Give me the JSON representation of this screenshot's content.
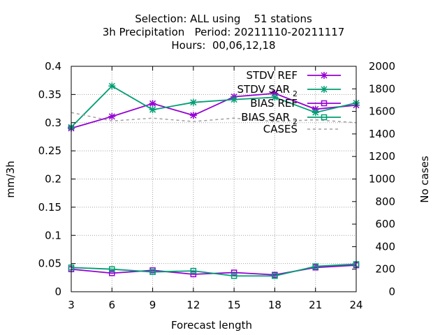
{
  "chart_data": {
    "type": "line",
    "title_lines": [
      "Selection: ALL using    51 stations",
      "3h Precipitation   Period: 20211110-20211117",
      "Hours:  00,06,12,18"
    ],
    "xlabel": "Forecast length",
    "ylabel": "mm/3h",
    "y2label": "No cases",
    "x": [
      3,
      6,
      9,
      12,
      15,
      18,
      21,
      24
    ],
    "xlim": [
      3,
      24
    ],
    "ylim": [
      0,
      0.4
    ],
    "y2lim": [
      0,
      2000
    ],
    "x_ticks": [
      3,
      6,
      9,
      12,
      15,
      18,
      21,
      24
    ],
    "y_ticks": [
      "0",
      "0.05",
      "0.1",
      "0.15",
      "0.2",
      "0.25",
      "0.3",
      "0.35",
      "0.4"
    ],
    "y2_ticks": [
      "0",
      "200",
      "400",
      "600",
      "800",
      "1000",
      "1200",
      "1400",
      "1600",
      "1800",
      "2000"
    ],
    "grid": true,
    "legend_position": "top-right",
    "series": [
      {
        "name": "STDV REF",
        "axis": "y",
        "color": "#9400d3",
        "marker": "x",
        "dashed": false,
        "values": [
          0.29,
          0.311,
          0.334,
          0.313,
          0.346,
          0.352,
          0.324,
          0.331
        ]
      },
      {
        "name": "STDV SAR",
        "name_sub": "2",
        "axis": "y",
        "color": "#009e73",
        "marker": "x",
        "dashed": false,
        "values": [
          0.292,
          0.365,
          0.323,
          0.336,
          0.341,
          0.345,
          0.318,
          0.335
        ]
      },
      {
        "name": "BIAS REF",
        "axis": "y",
        "color": "#9400d3",
        "marker": "square",
        "dashed": false,
        "values": [
          0.04,
          0.033,
          0.038,
          0.031,
          0.034,
          0.03,
          0.043,
          0.047
        ]
      },
      {
        "name": "BIAS SAR",
        "name_sub": "2",
        "axis": "y",
        "color": "#009e73",
        "marker": "square",
        "dashed": false,
        "values": [
          0.043,
          0.04,
          0.035,
          0.037,
          0.028,
          0.028,
          0.045,
          0.049
        ]
      },
      {
        "name": "CASES",
        "axis": "y2",
        "color": "#a0a0a0",
        "marker": "none",
        "dashed": true,
        "values": [
          1590,
          1515,
          1540,
          1510,
          1540,
          1510,
          1525,
          1500
        ]
      }
    ]
  }
}
